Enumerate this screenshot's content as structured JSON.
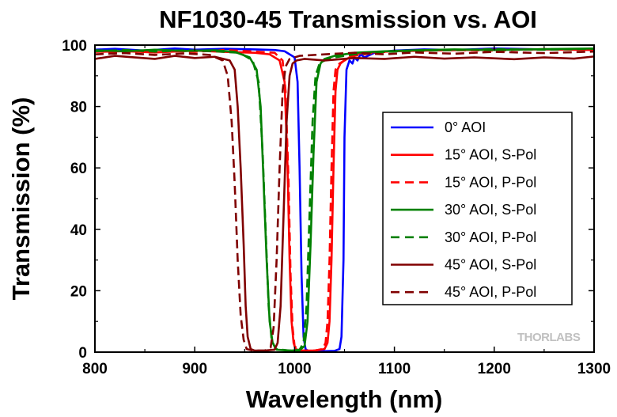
{
  "chart_data": {
    "type": "line",
    "title": "NF1030-45 Transmission vs. AOI",
    "xlabel": "Wavelength (nm)",
    "ylabel": "Transmission (%)",
    "xlim": [
      800,
      1300
    ],
    "ylim": [
      0,
      100
    ],
    "x_ticks": [
      800,
      900,
      1000,
      1100,
      1200,
      1300
    ],
    "y_ticks": [
      0,
      20,
      40,
      60,
      80,
      100
    ],
    "grid": false,
    "legend_position": "right",
    "watermark": "THORLABS",
    "series": [
      {
        "name": "0° AOI",
        "color": "#0000ff",
        "dash": "solid",
        "points": [
          [
            800,
            98.5
          ],
          [
            820,
            98.8
          ],
          [
            850,
            98.2
          ],
          [
            880,
            98.9
          ],
          [
            900,
            98.5
          ],
          [
            930,
            98.8
          ],
          [
            960,
            98.6
          ],
          [
            980,
            98.4
          ],
          [
            990,
            98.0
          ],
          [
            1000,
            96.0
          ],
          [
            1003,
            88
          ],
          [
            1005,
            60
          ],
          [
            1007,
            25
          ],
          [
            1009,
            5
          ],
          [
            1011,
            1
          ],
          [
            1014,
            0.3
          ],
          [
            1020,
            0.3
          ],
          [
            1030,
            0.3
          ],
          [
            1040,
            0.4
          ],
          [
            1045,
            1
          ],
          [
            1047,
            5
          ],
          [
            1049,
            30
          ],
          [
            1050,
            70
          ],
          [
            1052,
            92
          ],
          [
            1055,
            95
          ],
          [
            1058,
            94
          ],
          [
            1060,
            96
          ],
          [
            1063,
            95
          ],
          [
            1066,
            97
          ],
          [
            1070,
            96
          ],
          [
            1080,
            97.5
          ],
          [
            1100,
            98.2
          ],
          [
            1130,
            98.6
          ],
          [
            1160,
            98.4
          ],
          [
            1200,
            98.9
          ],
          [
            1250,
            98.6
          ],
          [
            1300,
            98.8
          ]
        ]
      },
      {
        "name": "15° AOI, S-Pol",
        "color": "#ff0000",
        "dash": "solid",
        "points": [
          [
            800,
            97.8
          ],
          [
            830,
            98.0
          ],
          [
            860,
            97.6
          ],
          [
            900,
            98.2
          ],
          [
            930,
            97.8
          ],
          [
            960,
            97.5
          ],
          [
            975,
            97.0
          ],
          [
            985,
            95.0
          ],
          [
            990,
            88
          ],
          [
            993,
            60
          ],
          [
            995,
            30
          ],
          [
            997,
            10
          ],
          [
            999,
            3
          ],
          [
            1001,
            1
          ],
          [
            1005,
            0.5
          ],
          [
            1020,
            0.5
          ],
          [
            1030,
            1
          ],
          [
            1033,
            3
          ],
          [
            1035,
            10
          ],
          [
            1037,
            30
          ],
          [
            1039,
            60
          ],
          [
            1041,
            85
          ],
          [
            1043,
            92
          ],
          [
            1046,
            94
          ],
          [
            1050,
            95
          ],
          [
            1055,
            96
          ],
          [
            1060,
            97
          ],
          [
            1070,
            97.5
          ],
          [
            1100,
            98.0
          ],
          [
            1150,
            98.3
          ],
          [
            1200,
            98.5
          ],
          [
            1250,
            98.6
          ],
          [
            1300,
            98.4
          ]
        ]
      },
      {
        "name": "15° AOI, P-Pol",
        "color": "#ff0000",
        "dash": "dash",
        "points": [
          [
            800,
            98.0
          ],
          [
            830,
            97.5
          ],
          [
            860,
            98.3
          ],
          [
            900,
            97.8
          ],
          [
            930,
            98.4
          ],
          [
            960,
            97.9
          ],
          [
            980,
            97.5
          ],
          [
            988,
            95
          ],
          [
            991,
            85
          ],
          [
            994,
            55
          ],
          [
            996,
            25
          ],
          [
            998,
            8
          ],
          [
            1000,
            2
          ],
          [
            1004,
            0.5
          ],
          [
            1020,
            0.5
          ],
          [
            1028,
            1
          ],
          [
            1031,
            3
          ],
          [
            1033,
            10
          ],
          [
            1035,
            30
          ],
          [
            1037,
            60
          ],
          [
            1039,
            85
          ],
          [
            1041,
            92
          ],
          [
            1045,
            94
          ],
          [
            1050,
            95
          ],
          [
            1060,
            96.5
          ],
          [
            1080,
            97.5
          ],
          [
            1100,
            98.0
          ],
          [
            1150,
            98.4
          ],
          [
            1200,
            98.2
          ],
          [
            1250,
            98.7
          ],
          [
            1300,
            98.5
          ]
        ]
      },
      {
        "name": "30° AOI, S-Pol",
        "color": "#008000",
        "dash": "solid",
        "points": [
          [
            800,
            98.3
          ],
          [
            830,
            98.0
          ],
          [
            860,
            98.5
          ],
          [
            890,
            98.1
          ],
          [
            920,
            98.3
          ],
          [
            940,
            97.8
          ],
          [
            955,
            96
          ],
          [
            962,
            92
          ],
          [
            966,
            80
          ],
          [
            969,
            55
          ],
          [
            972,
            30
          ],
          [
            975,
            10
          ],
          [
            978,
            3
          ],
          [
            982,
            0.8
          ],
          [
            995,
            0.5
          ],
          [
            1005,
            0.6
          ],
          [
            1010,
            2
          ],
          [
            1013,
            10
          ],
          [
            1016,
            35
          ],
          [
            1019,
            65
          ],
          [
            1022,
            88
          ],
          [
            1026,
            94
          ],
          [
            1030,
            95.5
          ],
          [
            1040,
            96.5
          ],
          [
            1060,
            97.5
          ],
          [
            1090,
            98.0
          ],
          [
            1120,
            98.3
          ],
          [
            1160,
            98.6
          ],
          [
            1200,
            98.4
          ],
          [
            1250,
            98.7
          ],
          [
            1300,
            98.9
          ]
        ]
      },
      {
        "name": "30° AOI, P-Pol",
        "color": "#008000",
        "dash": "dash",
        "points": [
          [
            800,
            98.0
          ],
          [
            830,
            98.4
          ],
          [
            860,
            97.9
          ],
          [
            890,
            98.3
          ],
          [
            920,
            98.0
          ],
          [
            945,
            97.5
          ],
          [
            958,
            95
          ],
          [
            964,
            88
          ],
          [
            968,
            65
          ],
          [
            971,
            40
          ],
          [
            974,
            15
          ],
          [
            977,
            4
          ],
          [
            981,
            1
          ],
          [
            995,
            0.5
          ],
          [
            1005,
            0.8
          ],
          [
            1009,
            3
          ],
          [
            1012,
            15
          ],
          [
            1015,
            45
          ],
          [
            1018,
            75
          ],
          [
            1021,
            90
          ],
          [
            1025,
            94
          ],
          [
            1030,
            95
          ],
          [
            1040,
            96
          ],
          [
            1060,
            97
          ],
          [
            1090,
            97.8
          ],
          [
            1120,
            98.2
          ],
          [
            1160,
            98.4
          ],
          [
            1200,
            98.7
          ],
          [
            1250,
            98.5
          ],
          [
            1300,
            98.8
          ]
        ]
      },
      {
        "name": "45° AOI, S-Pol",
        "color": "#800000",
        "dash": "solid",
        "points": [
          [
            800,
            95.5
          ],
          [
            820,
            96.5
          ],
          [
            840,
            96.0
          ],
          [
            860,
            95.5
          ],
          [
            880,
            96.5
          ],
          [
            900,
            95.8
          ],
          [
            920,
            96.2
          ],
          [
            935,
            95.0
          ],
          [
            940,
            92
          ],
          [
            943,
            80
          ],
          [
            946,
            60
          ],
          [
            949,
            35
          ],
          [
            951,
            15
          ],
          [
            953,
            5
          ],
          [
            956,
            1
          ],
          [
            960,
            0.5
          ],
          [
            970,
            0.5
          ],
          [
            980,
            0.8
          ],
          [
            983,
            3
          ],
          [
            986,
            15
          ],
          [
            989,
            45
          ],
          [
            992,
            75
          ],
          [
            995,
            90
          ],
          [
            998,
            94
          ],
          [
            1002,
            95
          ],
          [
            1010,
            95.5
          ],
          [
            1030,
            95.0
          ],
          [
            1060,
            95.8
          ],
          [
            1090,
            95.5
          ],
          [
            1120,
            96.2
          ],
          [
            1150,
            95.6
          ],
          [
            1180,
            96.0
          ],
          [
            1220,
            95.4
          ],
          [
            1250,
            96.0
          ],
          [
            1280,
            95.6
          ],
          [
            1300,
            96.3
          ]
        ]
      },
      {
        "name": "45° AOI, P-Pol",
        "color": "#800000",
        "dash": "dash",
        "points": [
          [
            800,
            97.0
          ],
          [
            830,
            97.4
          ],
          [
            860,
            96.8
          ],
          [
            890,
            97.3
          ],
          [
            915,
            96.8
          ],
          [
            928,
            95
          ],
          [
            933,
            90
          ],
          [
            937,
            75
          ],
          [
            940,
            55
          ],
          [
            943,
            30
          ],
          [
            946,
            12
          ],
          [
            949,
            4
          ],
          [
            952,
            1
          ],
          [
            958,
            0.5
          ],
          [
            970,
            0.5
          ],
          [
            976,
            1.5
          ],
          [
            979,
            8
          ],
          [
            982,
            30
          ],
          [
            985,
            60
          ],
          [
            988,
            85
          ],
          [
            991,
            93
          ],
          [
            995,
            95.5
          ],
          [
            1005,
            96.5
          ],
          [
            1030,
            97.0
          ],
          [
            1060,
            97.5
          ],
          [
            1090,
            97.0
          ],
          [
            1120,
            97.6
          ],
          [
            1160,
            97.2
          ],
          [
            1200,
            97.8
          ],
          [
            1250,
            97.4
          ],
          [
            1300,
            97.9
          ]
        ]
      }
    ]
  }
}
